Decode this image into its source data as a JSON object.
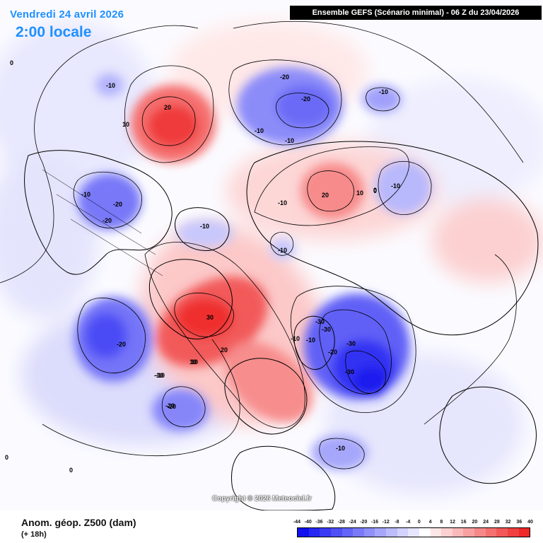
{
  "header": {
    "date": "Vendredi 24 avril 2026",
    "local_time": "2:00 locale",
    "model_run": "Ensemble GEFS  (Scénario minimal) - 06 Z du 23/04/2026"
  },
  "footer": {
    "variable": "Anom. géop. Z500 (dam)",
    "lead_time": "(+ 18h)",
    "copyright": "Copyright © 2026 Meteociel.fr"
  },
  "colors": {
    "positive": "#ff2a2a",
    "negative": "#2a2aff",
    "coastline": "#000000"
  },
  "scale": {
    "ticks": [
      "-44",
      "-40",
      "-36",
      "-32",
      "-28",
      "-24",
      "-20",
      "-16",
      "-12",
      "-8",
      "-4",
      "0",
      "4",
      "8",
      "12",
      "16",
      "20",
      "24",
      "28",
      "32",
      "36",
      "40"
    ],
    "colors": [
      "#1010ee",
      "#2626f2",
      "#3a3af4",
      "#4f4ff6",
      "#6464f7",
      "#7a7af8",
      "#9090fa",
      "#a6a6fb",
      "#bcbcfc",
      "#d2d2fd",
      "#e6e6fe",
      "#ffffff",
      "#ffe6e6",
      "#fdd0d0",
      "#fbb8b8",
      "#f9a0a0",
      "#f78888",
      "#f57070",
      "#f35858",
      "#f14040",
      "#ef2828"
    ]
  },
  "contour_labels": [
    "-10",
    "20",
    "10",
    "-20",
    "-20",
    "-10",
    "-10",
    "-10",
    "-20",
    "-20",
    "-10",
    "-10",
    "20",
    "10",
    "0",
    "-10",
    "-10",
    "-10",
    "-10",
    "30",
    "20",
    "10",
    "-20",
    "-10",
    "-20",
    "-30",
    "-30",
    "-10",
    "-20",
    "-30",
    "-30",
    "-10",
    "0",
    "-10",
    "0",
    "0",
    "10",
    "-20",
    "0"
  ]
}
